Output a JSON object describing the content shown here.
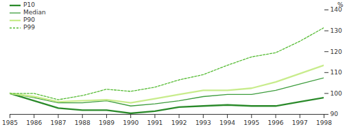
{
  "chart_data": {
    "type": "line",
    "x": [
      1985,
      1986,
      1987,
      1988,
      1989,
      1990,
      1991,
      1992,
      1993,
      1994,
      1995,
      1996,
      1997,
      1998
    ],
    "series": [
      {
        "name": "P10",
        "color": "#2a8a2a",
        "line_style": "solid",
        "values": [
          100,
          96.5,
          93,
          92,
          92,
          90.5,
          91.5,
          93.5,
          94,
          94.5,
          94,
          94,
          96,
          98
        ]
      },
      {
        "name": "Median",
        "color": "#3c9c3c",
        "line_style": "solid",
        "values": [
          100,
          98,
          95.5,
          95.5,
          96.5,
          94,
          95,
          96.5,
          98.5,
          99.5,
          99.5,
          101.5,
          104.5,
          107.5
        ]
      },
      {
        "name": "P90",
        "color": "#c8ec8c",
        "line_style": "solid",
        "values": [
          100,
          98.5,
          96,
          96.5,
          97,
          95.5,
          97.5,
          99.5,
          101.5,
          101.5,
          102.5,
          105.5,
          109.5,
          113.5
        ]
      },
      {
        "name": "P99",
        "color": "#55bb33",
        "line_style": "dashed",
        "values": [
          100,
          100,
          97,
          99,
          102,
          101,
          103,
          106.5,
          109,
          113.5,
          117.5,
          119.5,
          125,
          131.5
        ]
      }
    ],
    "y_label": "%",
    "xlim": [
      1985,
      1998
    ],
    "xticks": [
      1985,
      1986,
      1987,
      1988,
      1989,
      1990,
      1991,
      1992,
      1993,
      1994,
      1995,
      1996,
      1997,
      1998
    ],
    "ylim": [
      90,
      140
    ],
    "yticks": [
      90,
      100,
      110,
      120,
      130,
      140
    ],
    "grid": false,
    "legend": "top-left"
  }
}
